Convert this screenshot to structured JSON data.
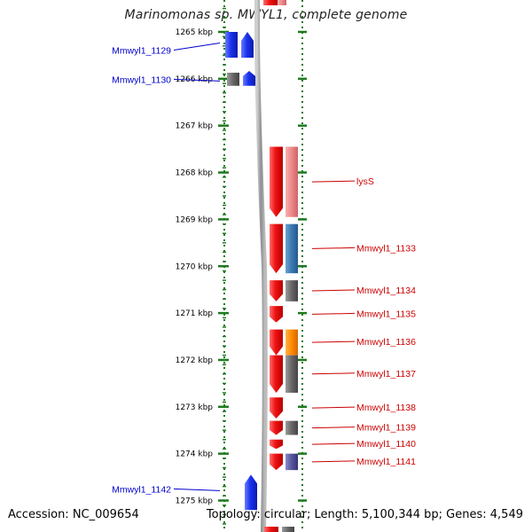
{
  "title": "Marinomonas sp. MWYL1, complete genome",
  "footer": {
    "accession": "Accession: NC_009654",
    "summary": "Topology: circular; Length: 5,100,344 bp; Genes: 4,549"
  },
  "colors": {
    "ruler_tick": "#1f7a1f",
    "reverse_label": "#0000cc",
    "forward_label": "#cc0000",
    "forward_gene": "#ee1111",
    "reverse_gene": "#1a33ee",
    "feature_pink": "#ee8888",
    "feature_blue": "#3a78b0",
    "feature_gray": "#666666",
    "feature_orange": "#ff8800",
    "feature_purple": "#555599",
    "backbone": "#999999"
  },
  "ruler": {
    "unit": "kbp",
    "ticks": [
      "1265 kbp",
      "1266 kbp",
      "1267 kbp",
      "1268 kbp",
      "1269 kbp",
      "1270 kbp",
      "1271 kbp",
      "1272 kbp",
      "1273 kbp",
      "1274 kbp",
      "1275 kbp"
    ]
  },
  "genes": [
    {
      "label": "Mmwyl1_1129",
      "strand": "reverse",
      "start_kbp": 1265.0,
      "end_kbp": 1265.55,
      "cds_color": "reverse_gene"
    },
    {
      "label": "Mmwyl1_1130",
      "strand": "reverse",
      "start_kbp": 1265.87,
      "end_kbp": 1266.15,
      "cds_color": "reverse_gene",
      "feature_color": "feature_gray"
    },
    {
      "label": "lysS",
      "strand": "forward",
      "start_kbp": 1267.45,
      "end_kbp": 1268.95,
      "feature_color": "feature_pink"
    },
    {
      "label": "Mmwyl1_1133",
      "strand": "forward",
      "start_kbp": 1269.1,
      "end_kbp": 1270.15,
      "feature_color": "feature_blue"
    },
    {
      "label": "Mmwyl1_1134",
      "strand": "forward",
      "start_kbp": 1270.3,
      "end_kbp": 1270.75,
      "feature_color": "feature_gray"
    },
    {
      "label": "Mmwyl1_1135",
      "strand": "forward",
      "start_kbp": 1270.85,
      "end_kbp": 1271.2
    },
    {
      "label": "Mmwyl1_1136",
      "strand": "forward",
      "start_kbp": 1271.35,
      "end_kbp": 1271.9,
      "feature_color": "feature_orange"
    },
    {
      "label": "Mmwyl1_1137",
      "strand": "forward",
      "start_kbp": 1271.9,
      "end_kbp": 1272.7,
      "feature_color": "feature_gray"
    },
    {
      "label": "Mmwyl1_1138",
      "strand": "forward",
      "start_kbp": 1272.8,
      "end_kbp": 1273.25
    },
    {
      "label": "Mmwyl1_1139",
      "strand": "forward",
      "start_kbp": 1273.3,
      "end_kbp": 1273.6,
      "feature_color": "feature_gray"
    },
    {
      "label": "Mmwyl1_1140",
      "strand": "forward",
      "start_kbp": 1273.7,
      "end_kbp": 1273.9
    },
    {
      "label": "Mmwyl1_1141",
      "strand": "forward",
      "start_kbp": 1274.0,
      "end_kbp": 1274.35,
      "feature_color": "feature_purple"
    },
    {
      "label": "Mmwyl1_1142",
      "strand": "reverse",
      "start_kbp": 1274.45,
      "end_kbp": 1275.2,
      "cds_color": "reverse_gene"
    }
  ]
}
